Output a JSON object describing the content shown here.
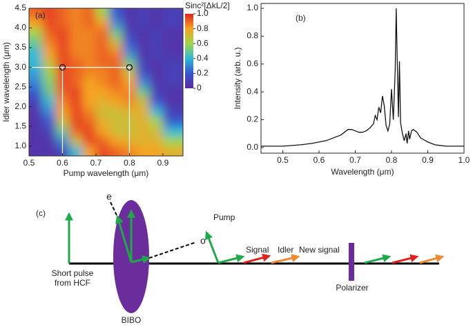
{
  "chart_data": [
    {
      "type": "heatmap",
      "title": "(a)",
      "xlabel": "Pump wavelength (μm)",
      "ylabel": "Idler wavelength (μm)",
      "zlabel": "Sinc²[ΔkL/2]",
      "xlim": [
        0.5,
        0.96
      ],
      "xticks": [
        0.5,
        0.6,
        0.7,
        0.8,
        0.9
      ],
      "ylim": [
        0.75,
        4.5
      ],
      "yticks": [
        {
          "value": 1,
          "label": "1.0"
        },
        1.5,
        {
          "value": 2,
          "label": "2.0"
        },
        2.5,
        {
          "value": 3,
          "label": "3.0"
        },
        3.5,
        {
          "value": 4,
          "label": "4.0"
        },
        4.5
      ],
      "zlim": [
        0,
        1
      ],
      "zticks": [
        0,
        0.2,
        0.4,
        0.6,
        0.8,
        {
          "value": 1,
          "label": "1.0"
        }
      ],
      "colormap": [
        "#5b2a9e",
        "#3557d0",
        "#2fb9d6",
        "#9fd64a",
        "#f5a423",
        "#e3231f"
      ],
      "x": [
        0.52,
        0.56,
        0.6,
        0.64,
        0.68,
        0.72,
        0.76,
        0.8,
        0.84,
        0.88,
        0.92
      ],
      "y": [
        4.375,
        4.125,
        3.875,
        3.625,
        3.375,
        3.125,
        2.875,
        2.625,
        2.375,
        2.125,
        1.875,
        1.625,
        1.375,
        1.125,
        0.875
      ],
      "values": [
        [
          0.9,
          0.95,
          0.9,
          0.85,
          0.9,
          0.6,
          0.2,
          0.05,
          0.1,
          0.05,
          0.1
        ],
        [
          0.8,
          0.95,
          0.9,
          0.85,
          0.9,
          0.8,
          0.3,
          0.05,
          0.1,
          0.05,
          0.1
        ],
        [
          0.6,
          0.9,
          0.95,
          0.85,
          0.85,
          0.9,
          0.5,
          0.1,
          0.05,
          0.1,
          0.05
        ],
        [
          0.5,
          0.85,
          0.95,
          0.85,
          0.85,
          0.9,
          0.7,
          0.2,
          0.05,
          0.1,
          0.05
        ],
        [
          0.4,
          0.8,
          0.95,
          0.85,
          0.85,
          0.9,
          0.85,
          0.3,
          0.05,
          0.1,
          0.05
        ],
        [
          0.4,
          0.7,
          0.95,
          0.9,
          0.85,
          0.9,
          0.9,
          0.5,
          0.1,
          0.05,
          0.1
        ],
        [
          0.35,
          0.6,
          0.95,
          0.9,
          0.85,
          0.85,
          0.9,
          0.7,
          0.15,
          0.05,
          0.1
        ],
        [
          0.3,
          0.55,
          0.95,
          0.9,
          0.8,
          0.85,
          0.9,
          0.8,
          0.3,
          0.05,
          0.1
        ],
        [
          0.2,
          0.5,
          0.9,
          0.95,
          0.8,
          0.8,
          0.85,
          0.85,
          0.5,
          0.1,
          0.05
        ],
        [
          0.1,
          0.4,
          0.85,
          0.95,
          0.8,
          0.75,
          0.8,
          0.85,
          0.7,
          0.2,
          0.05
        ],
        [
          0.05,
          0.3,
          0.8,
          0.95,
          0.85,
          0.7,
          0.7,
          0.75,
          0.75,
          0.4,
          0.1
        ],
        [
          0.05,
          0.2,
          0.7,
          0.95,
          0.9,
          0.75,
          0.7,
          0.7,
          0.75,
          0.6,
          0.2
        ],
        [
          0.05,
          0.1,
          0.5,
          0.9,
          0.95,
          0.8,
          0.7,
          0.7,
          0.75,
          0.7,
          0.4
        ],
        [
          0.05,
          0.05,
          0.3,
          0.7,
          0.95,
          0.9,
          0.8,
          0.75,
          0.75,
          0.75,
          0.6
        ],
        [
          0.05,
          0.05,
          0.1,
          0.4,
          0.8,
          0.95,
          0.9,
          0.85,
          0.8,
          0.8,
          0.75
        ]
      ],
      "markers": {
        "x": [
          0.6,
          0.8
        ],
        "y": [
          3,
          3
        ]
      }
    },
    {
      "type": "line",
      "title": "(b)",
      "xlabel": "Wavelength (μm)",
      "ylabel": "Intensity (arb. u.)",
      "color": "#111111",
      "xlim": [
        0.44,
        1.0
      ],
      "xticks": [
        0.5,
        0.6,
        0.7,
        0.8,
        0.9,
        {
          "value": 1,
          "label": "1.0"
        }
      ],
      "ylim": [
        -0.04,
        1.035
      ],
      "yticks": [
        {
          "value": 0,
          "label": "0.0"
        },
        0.2,
        0.4,
        0.6,
        0.8,
        {
          "value": 1,
          "label": "1.0"
        }
      ],
      "x": [
        0.44,
        0.47,
        0.5,
        0.55,
        0.58,
        0.6,
        0.62,
        0.64,
        0.66,
        0.67,
        0.68,
        0.69,
        0.7,
        0.71,
        0.72,
        0.73,
        0.74,
        0.75,
        0.755,
        0.76,
        0.765,
        0.77,
        0.775,
        0.78,
        0.785,
        0.79,
        0.795,
        0.8,
        0.805,
        0.81,
        0.813,
        0.816,
        0.819,
        0.822,
        0.825,
        0.83,
        0.835,
        0.84,
        0.843,
        0.847,
        0.85,
        0.855,
        0.86,
        0.87,
        0.88,
        0.9,
        0.92,
        0.95,
        1.0
      ],
      "values": [
        0.01,
        0.01,
        0.01,
        0.02,
        0.03,
        0.04,
        0.05,
        0.07,
        0.09,
        0.11,
        0.13,
        0.13,
        0.12,
        0.11,
        0.11,
        0.12,
        0.14,
        0.17,
        0.23,
        0.2,
        0.29,
        0.25,
        0.37,
        0.3,
        0.16,
        0.12,
        0.17,
        0.42,
        0.2,
        0.55,
        1.0,
        0.6,
        0.22,
        0.62,
        0.18,
        0.1,
        0.05,
        0.1,
        0.03,
        0.12,
        0.06,
        0.12,
        0.13,
        0.11,
        0.07,
        0.04,
        0.02,
        0.01,
        0.01
      ]
    }
  ],
  "diagram": {
    "label": "(c)",
    "source": [
      "Short pulse",
      "from HCF"
    ],
    "crystal": "BIBO",
    "e_axis": "e",
    "o_axis": "o",
    "pump": "Pump",
    "signal": "Signal",
    "idler": "Idler",
    "new_signal": "New signal",
    "polarizer": "Polarizer"
  }
}
